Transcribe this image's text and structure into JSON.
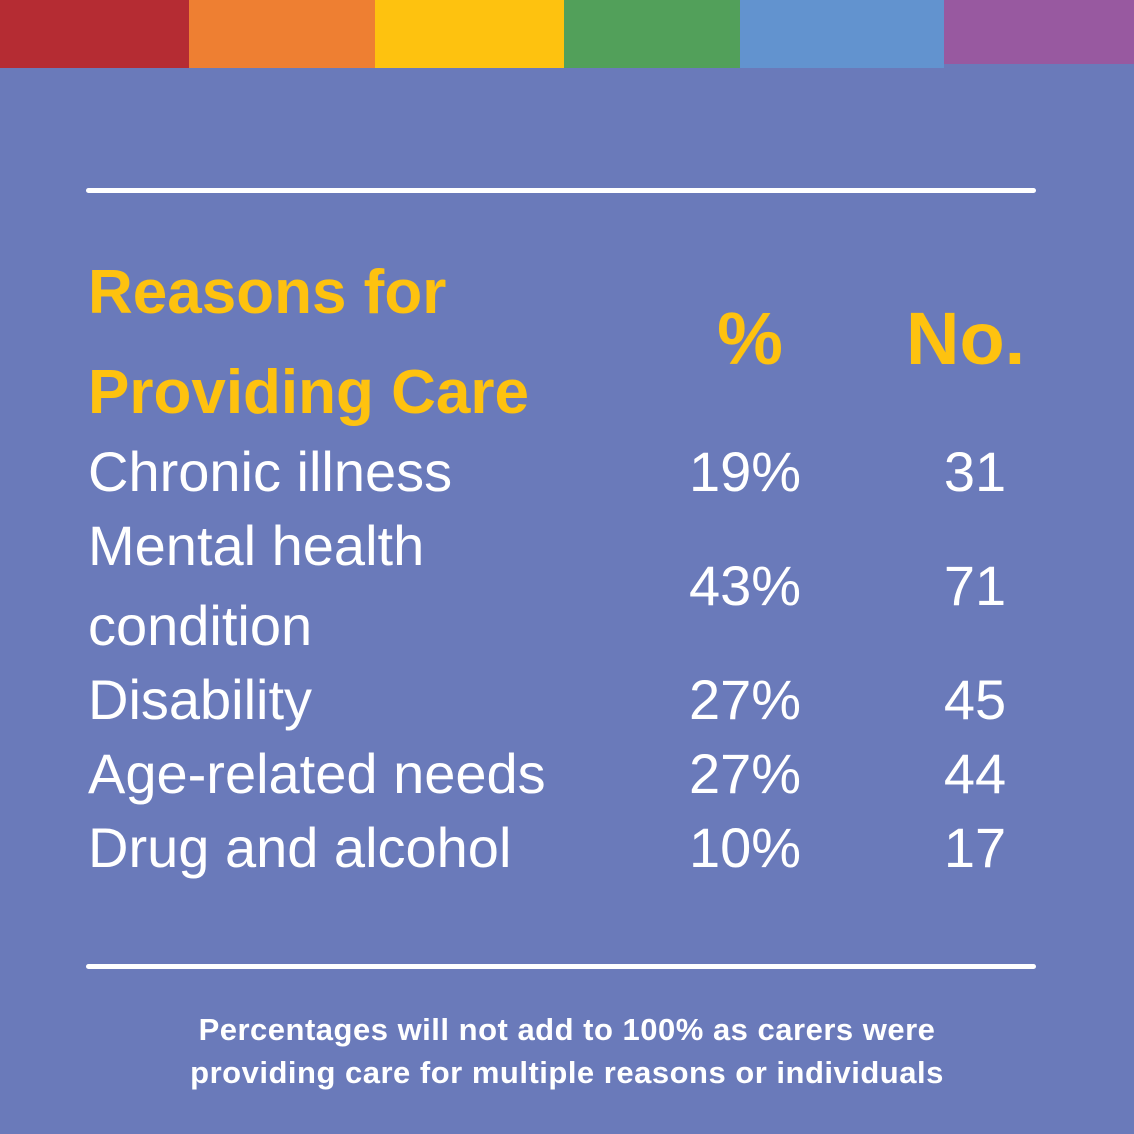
{
  "colors": {
    "background": "#6a7aba",
    "heading": "#fec20f",
    "text": "#ffffff",
    "stripes": [
      "#b52c33",
      "#ee7f32",
      "#fec20f",
      "#52a05a",
      "#6293cf",
      "#9859a0"
    ]
  },
  "chart_data": {
    "type": "table",
    "title_lines": [
      "Reasons for",
      "Providing Care"
    ],
    "columns": [
      "%",
      "No."
    ],
    "rows": [
      {
        "category_lines": [
          "Chronic illness"
        ],
        "percent": "19%",
        "number": "31"
      },
      {
        "category_lines": [
          "Mental health",
          "condition"
        ],
        "percent": "43%",
        "number": "71"
      },
      {
        "category_lines": [
          "Disability"
        ],
        "percent": "27%",
        "number": "45"
      },
      {
        "category_lines": [
          "Age-related needs"
        ],
        "percent": "27%",
        "number": "44"
      },
      {
        "category_lines": [
          "Drug and alcohol"
        ],
        "percent": "10%",
        "number": "17"
      }
    ],
    "footnote_lines": [
      "Percentages will not add to 100% as carers were",
      "providing care for multiple reasons or individuals"
    ]
  }
}
